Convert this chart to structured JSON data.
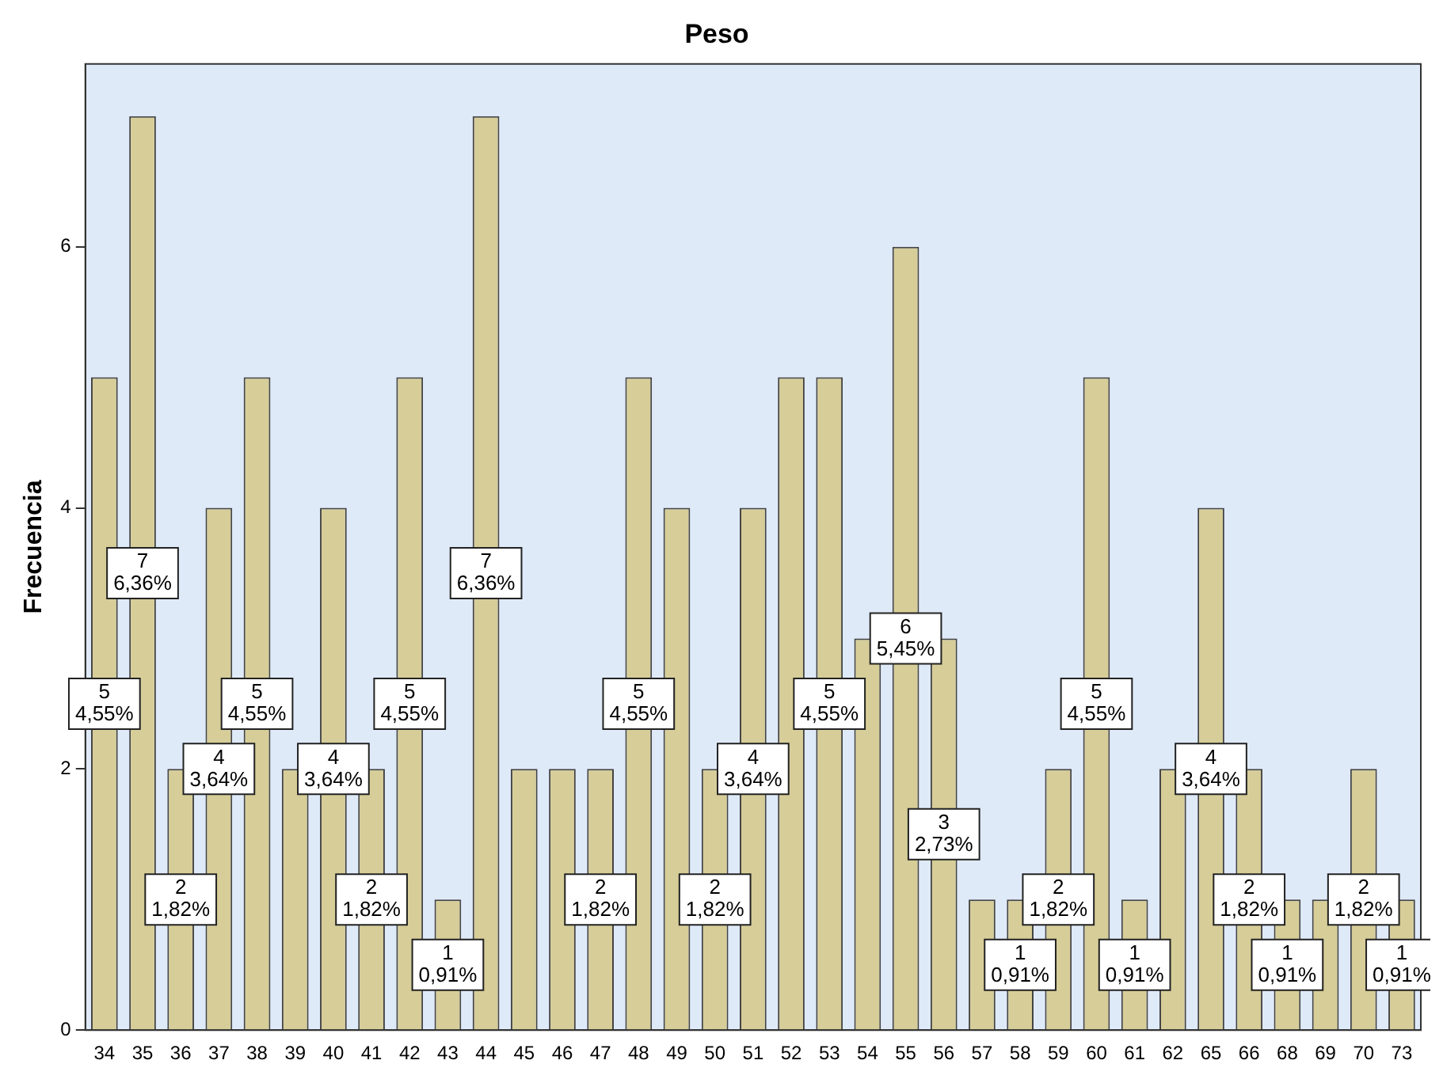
{
  "chart_data": {
    "type": "bar",
    "title": "Peso",
    "ylabel": "Frecuencia",
    "categories": [
      "34",
      "35",
      "36",
      "37",
      "38",
      "39",
      "40",
      "41",
      "42",
      "43",
      "44",
      "45",
      "46",
      "47",
      "48",
      "49",
      "50",
      "51",
      "52",
      "53",
      "54",
      "55",
      "56",
      "57",
      "58",
      "59",
      "60",
      "61",
      "62",
      "65",
      "66",
      "68",
      "69",
      "70",
      "73"
    ],
    "values": [
      5,
      7,
      2,
      4,
      5,
      2,
      4,
      2,
      5,
      1,
      7,
      2,
      2,
      2,
      5,
      4,
      2,
      4,
      5,
      5,
      3,
      6,
      3,
      1,
      1,
      2,
      5,
      1,
      2,
      4,
      2,
      1,
      1,
      2,
      1
    ],
    "value_labels": [
      "5\n4,55%",
      "7\n6,36%",
      "2\n1,82%",
      "4\n3,64%",
      "5\n4,55%",
      null,
      "4\n3,64%",
      "2\n1,82%",
      "5\n4,55%",
      "1\n0,91%",
      "7\n6,36%",
      null,
      null,
      "2\n1,82%",
      "5\n4,55%",
      null,
      "2\n1,82%",
      "4\n3,64%",
      null,
      "5\n4,55%",
      null,
      "6\n5,45%",
      "3\n2,73%",
      null,
      "1\n0,91%",
      "2\n1,82%",
      "5\n4,55%",
      "1\n0,91%",
      null,
      "4\n3,64%",
      "2\n1,82%",
      "1\n0,91%",
      null,
      "2\n1,82%",
      "1\n0,91%"
    ],
    "color": "#d6cd98",
    "ylim": [
      0,
      7.4
    ],
    "yticks": [
      0,
      2,
      4,
      6
    ],
    "grid": false,
    "legend": false
  }
}
